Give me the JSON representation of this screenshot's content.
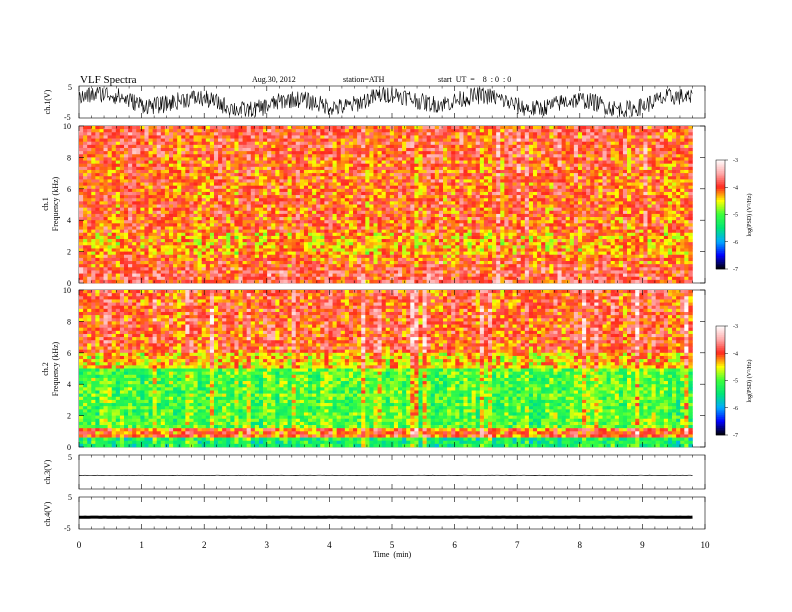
{
  "chart_data": {
    "type": "heatmap",
    "title": "VLF  Spectra",
    "date": "Aug.30, 2012",
    "station": "station=ATH",
    "start_time": "start  UT  =    8  : 0  : 0",
    "xlabel": "Time  (min)",
    "xlim": [
      0,
      10
    ],
    "x_ticks": [
      "0",
      "1",
      "2",
      "3",
      "4",
      "5",
      "6",
      "7",
      "8",
      "9",
      "10"
    ],
    "panels": [
      {
        "name": "ch1-waveform",
        "type": "line",
        "ylabel": "ch.1(V)",
        "ylim": [
          -5,
          5
        ],
        "y_ticks": [
          "5",
          "-5"
        ],
        "amplitude_description": "noisy broadband signal, roughly -4 to 4 V"
      },
      {
        "name": "ch1-spectrogram",
        "type": "heatmap",
        "ylabel_channel": "ch.1",
        "ylabel": "Frequency  (kHz)",
        "ylim": [
          0,
          10
        ],
        "y_ticks": [
          "0",
          "2",
          "4",
          "6",
          "8",
          "10"
        ],
        "dominant_level": "-4 (red/yellow)"
      },
      {
        "name": "ch2-spectrogram",
        "type": "heatmap",
        "ylabel_channel": "ch.2",
        "ylabel": "Frequency  (kHz)",
        "ylim": [
          0,
          10
        ],
        "y_ticks": [
          "0",
          "2",
          "4",
          "6",
          "8",
          "10"
        ],
        "dominant_level": "-4 above 5 kHz, -5 (green) between 1 and 5 kHz"
      },
      {
        "name": "ch3-waveform",
        "type": "line",
        "ylabel": "ch.3(V)",
        "ylim": [
          -5,
          5
        ],
        "y_ticks": [
          "5"
        ],
        "level": -1.0
      },
      {
        "name": "ch4-waveform",
        "type": "line",
        "ylabel": "ch.4(V)",
        "ylim": [
          -5,
          5
        ],
        "y_ticks": [
          "5",
          "-5"
        ],
        "level": -1.3
      }
    ],
    "colorbar": {
      "label": "log(PSD) (V²/Hz)",
      "range": [
        -7,
        -3
      ],
      "ticks": [
        "-3",
        "-4",
        "-5",
        "-6",
        "-7"
      ],
      "colors": [
        "#ffffff",
        "#ff2020",
        "#ffff00",
        "#00ff60",
        "#0000ff",
        "#000000"
      ]
    },
    "data_end_min": 9.8
  }
}
